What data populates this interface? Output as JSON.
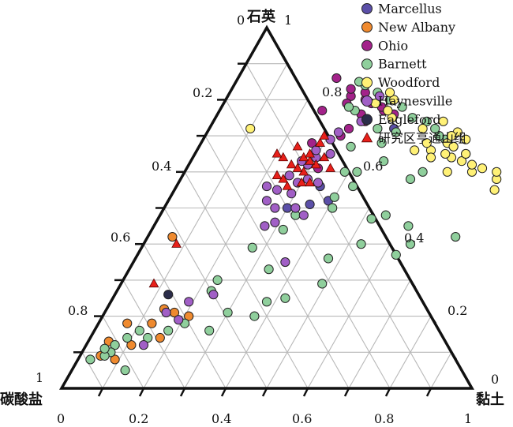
{
  "chart_data": {
    "type": "scatter",
    "subtype": "ternary",
    "axes": {
      "top": {
        "label": "石英"
      },
      "left": {
        "label": "碳酸盐"
      },
      "right": {
        "label": "黏土"
      }
    },
    "tick_labels": {
      "top": [
        "0",
        "1"
      ],
      "left": [
        "0.2",
        "0.4",
        "0.6",
        "0.8",
        "1"
      ],
      "right": [
        "0.8",
        "0.6",
        "0.4",
        "0.2",
        "0"
      ],
      "bottom": [
        "0",
        "0.2",
        "0.4",
        "0.6",
        "0.8",
        "1"
      ]
    },
    "grid": true,
    "legend_position": "top-right",
    "series": [
      {
        "name": "Marcellus",
        "marker": "circle",
        "color": "#5b4fa8",
        "points": [
          [
            0.52,
            0.39
          ],
          [
            0.51,
            0.35
          ],
          [
            0.72,
            0.45
          ],
          [
            0.5,
            0.3
          ],
          [
            0.56,
            0.35
          ]
        ]
      },
      {
        "name": "New Albany",
        "marker": "circle",
        "color": "#ef8a2f",
        "points": [
          [
            0.12,
            0.11
          ],
          [
            0.14,
            0.17
          ],
          [
            0.18,
            0.13
          ],
          [
            0.2,
            0.21
          ],
          [
            0.21,
            0.17
          ],
          [
            0.22,
            0.14
          ],
          [
            0.18,
            0.07
          ],
          [
            0.13,
            0.05
          ],
          [
            0.08,
            0.09
          ],
          [
            0.42,
            0.06
          ],
          [
            0.09,
            0.05
          ]
        ]
      },
      {
        "name": "Ohio",
        "marker": "circle",
        "color": "#a3228a",
        "points": [
          [
            0.76,
            0.43
          ],
          [
            0.77,
            0.4
          ],
          [
            0.78,
            0.39
          ],
          [
            0.79,
            0.36
          ],
          [
            0.8,
            0.34
          ],
          [
            0.81,
            0.3
          ],
          [
            0.76,
            0.35
          ],
          [
            0.74,
            0.37
          ],
          [
            0.82,
            0.33
          ],
          [
            0.79,
            0.3
          ],
          [
            0.86,
            0.24
          ],
          [
            0.72,
            0.34
          ],
          [
            0.7,
            0.33
          ],
          [
            0.68,
            0.27
          ],
          [
            0.77,
            0.25
          ],
          [
            0.83,
            0.29
          ],
          [
            0.61,
            0.32
          ]
        ]
      },
      {
        "name": "Barnett",
        "marker": "circle",
        "color": "#8fcf9c",
        "points": [
          [
            0.42,
            0.75
          ],
          [
            0.4,
            0.65
          ],
          [
            0.45,
            0.62
          ],
          [
            0.48,
            0.55
          ],
          [
            0.4,
            0.53
          ],
          [
            0.36,
            0.47
          ],
          [
            0.29,
            0.49
          ],
          [
            0.37,
            0.63
          ],
          [
            0.47,
            0.52
          ],
          [
            0.58,
            0.56
          ],
          [
            0.6,
            0.58
          ],
          [
            0.65,
            0.66
          ],
          [
            0.67,
            0.62
          ],
          [
            0.69,
            0.59
          ],
          [
            0.7,
            0.57
          ],
          [
            0.72,
            0.55
          ],
          [
            0.74,
            0.52
          ],
          [
            0.75,
            0.48
          ],
          [
            0.71,
            0.46
          ],
          [
            0.6,
            0.42
          ],
          [
            0.56,
            0.43
          ],
          [
            0.53,
            0.4
          ],
          [
            0.5,
            0.41
          ],
          [
            0.48,
            0.33
          ],
          [
            0.44,
            0.32
          ],
          [
            0.39,
            0.27
          ],
          [
            0.3,
            0.23
          ],
          [
            0.33,
            0.34
          ],
          [
            0.24,
            0.38
          ],
          [
            0.25,
            0.42
          ],
          [
            0.2,
            0.37
          ],
          [
            0.21,
            0.3
          ],
          [
            0.27,
            0.23
          ],
          [
            0.16,
            0.28
          ],
          [
            0.18,
            0.21
          ],
          [
            0.16,
            0.18
          ],
          [
            0.14,
            0.14
          ],
          [
            0.16,
            0.11
          ],
          [
            0.14,
            0.09
          ],
          [
            0.12,
            0.07
          ],
          [
            0.1,
            0.07
          ],
          [
            0.09,
            0.06
          ],
          [
            0.08,
            0.03
          ],
          [
            0.11,
            0.05
          ],
          [
            0.05,
            0.13
          ],
          [
            0.78,
            0.44
          ],
          [
            0.8,
            0.4
          ],
          [
            0.77,
            0.33
          ],
          [
            0.78,
            0.31
          ],
          [
            0.82,
            0.36
          ],
          [
            0.84,
            0.32
          ],
          [
            0.85,
            0.3
          ],
          [
            0.63,
            0.47
          ],
          [
            0.6,
            0.39
          ],
          [
            0.67,
            0.37
          ],
          [
            0.68,
            0.44
          ],
          [
            0.72,
            0.41
          ]
        ]
      },
      {
        "name": "Woodford",
        "marker": "circle",
        "color": "#fff176",
        "points": [
          [
            0.52,
            0.97
          ],
          [
            0.52,
            0.94
          ],
          [
            0.49,
            0.91
          ],
          [
            0.55,
            0.91
          ],
          [
            0.53,
            0.86
          ],
          [
            0.55,
            0.78
          ],
          [
            0.58,
            0.77
          ],
          [
            0.6,
            0.76
          ],
          [
            0.61,
            0.72
          ],
          [
            0.6,
            0.7
          ],
          [
            0.62,
            0.69
          ],
          [
            0.63,
            0.66
          ],
          [
            0.65,
            0.66
          ],
          [
            0.64,
            0.63
          ],
          [
            0.65,
            0.61
          ],
          [
            0.68,
            0.6
          ],
          [
            0.69,
            0.64
          ],
          [
            0.71,
            0.61
          ],
          [
            0.66,
            0.57
          ],
          [
            0.7,
            0.6
          ],
          [
            0.74,
            0.56
          ],
          [
            0.72,
            0.52
          ],
          [
            0.75,
            0.43
          ],
          [
            0.77,
            0.41
          ],
          [
            0.8,
            0.41
          ],
          [
            0.82,
            0.39
          ],
          [
            0.79,
            0.37
          ],
          [
            0.72,
            0.1
          ],
          [
            0.64,
            0.58
          ],
          [
            0.6,
            0.64
          ],
          [
            0.67,
            0.62
          ],
          [
            0.66,
            0.53
          ],
          [
            0.68,
            0.55
          ]
        ]
      },
      {
        "name": "Haynesville",
        "marker": "circle",
        "color": "#a15fc6",
        "points": [
          [
            0.35,
            0.37
          ],
          [
            0.48,
            0.35
          ],
          [
            0.5,
            0.32
          ],
          [
            0.46,
            0.29
          ],
          [
            0.45,
            0.27
          ],
          [
            0.5,
            0.27
          ],
          [
            0.54,
            0.29
          ],
          [
            0.57,
            0.29
          ],
          [
            0.58,
            0.31
          ],
          [
            0.59,
            0.26
          ],
          [
            0.55,
            0.25
          ],
          [
            0.56,
            0.22
          ],
          [
            0.52,
            0.24
          ],
          [
            0.62,
            0.29
          ],
          [
            0.64,
            0.3
          ],
          [
            0.63,
            0.27
          ],
          [
            0.65,
            0.33
          ],
          [
            0.69,
            0.31
          ],
          [
            0.71,
            0.32
          ],
          [
            0.81,
            0.37
          ],
          [
            0.74,
            0.36
          ],
          [
            0.19,
            0.19
          ],
          [
            0.21,
            0.15
          ],
          [
            0.12,
            0.14
          ],
          [
            0.26,
            0.24
          ],
          [
            0.24,
            0.19
          ],
          [
            0.66,
            0.29
          ],
          [
            0.57,
            0.34
          ]
        ]
      },
      {
        "name": "Eagleford",
        "marker": "circle",
        "color": "#2b2d4a",
        "points": [
          [
            0.26,
            0.13
          ]
        ]
      },
      {
        "name": "研究区亨通山组",
        "marker": "triangle",
        "color": "#e8201a",
        "points": [
          [
            0.61,
            0.35
          ],
          [
            0.62,
            0.31
          ],
          [
            0.64,
            0.32
          ],
          [
            0.6,
            0.29
          ],
          [
            0.63,
            0.29
          ],
          [
            0.64,
            0.27
          ],
          [
            0.65,
            0.28
          ],
          [
            0.57,
            0.3
          ],
          [
            0.58,
            0.25
          ],
          [
            0.61,
            0.27
          ],
          [
            0.62,
            0.25
          ],
          [
            0.67,
            0.24
          ],
          [
            0.64,
            0.22
          ],
          [
            0.65,
            0.2
          ],
          [
            0.59,
            0.23
          ],
          [
            0.68,
            0.29
          ],
          [
            0.57,
            0.32
          ],
          [
            0.7,
            0.29
          ],
          [
            0.29,
            0.08
          ],
          [
            0.4,
            0.08
          ],
          [
            0.56,
            0.27
          ]
        ]
      }
    ]
  }
}
